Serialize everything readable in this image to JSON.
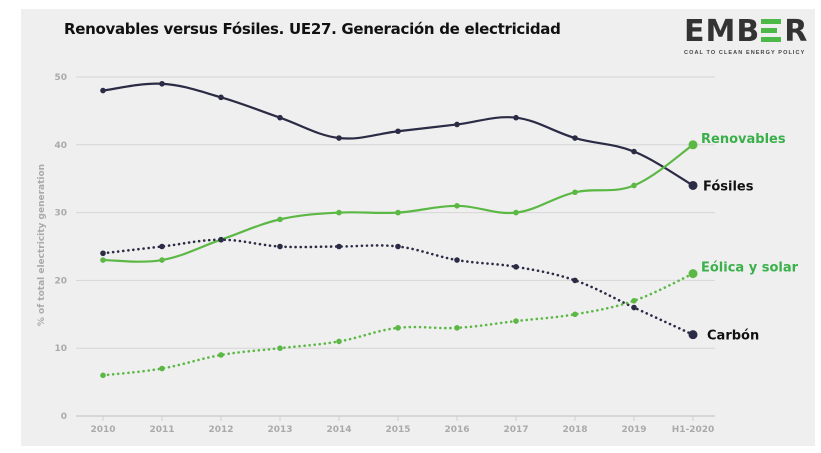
{
  "header": {
    "title": "Renovables versus Fósiles. UE27. Generación de electricidad"
  },
  "logo": {
    "word_left": "EMB",
    "word_right": "R",
    "tagline": "COAL TO CLEAN ENERGY POLICY",
    "accent_color": "#4cb848"
  },
  "chart_data": {
    "type": "line",
    "title": "Renovables versus Fósiles. UE27. Generación de electricidad",
    "xlabel": "",
    "ylabel": "% of total electricity generation",
    "categories": [
      "2010",
      "2011",
      "2012",
      "2013",
      "2014",
      "2015",
      "2016",
      "2017",
      "2018",
      "2019",
      "H1-2020"
    ],
    "ylim": [
      0,
      50
    ],
    "yticks": [
      0,
      10,
      20,
      30,
      40,
      50
    ],
    "grid": true,
    "legend": "inline-right",
    "series": [
      {
        "name": "Fósiles",
        "color": "#2b2b45",
        "style": "solid",
        "values": [
          48,
          49,
          47,
          44,
          41,
          42,
          43,
          44,
          41,
          39,
          34
        ],
        "label_color": "#111111"
      },
      {
        "name": "Renovables",
        "color": "#5cb845",
        "style": "solid",
        "values": [
          23,
          23,
          26,
          29,
          30,
          30,
          31,
          30,
          33,
          34,
          40
        ],
        "label_color": "#3ab04a"
      },
      {
        "name": "Carbón",
        "color": "#2b2b45",
        "style": "dotted",
        "values": [
          24,
          25,
          26,
          25,
          25,
          25,
          23,
          22,
          20,
          16,
          12
        ],
        "label_color": "#111111"
      },
      {
        "name": "Eólica y solar",
        "color": "#5cb845",
        "style": "dotted",
        "values": [
          6,
          7,
          9,
          10,
          11,
          13,
          13,
          14,
          15,
          17,
          21
        ],
        "label_color": "#3ab04a"
      }
    ]
  }
}
